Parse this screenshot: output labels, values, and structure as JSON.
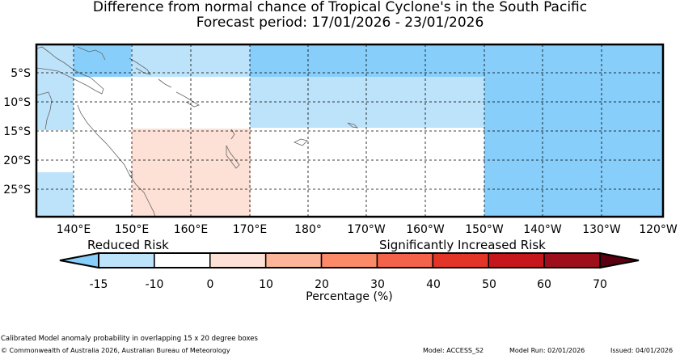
{
  "header": {
    "title": "Difference from normal chance of Tropical Cyclone's in the South Pacific",
    "subtitle": "Forecast period: 17/01/2026 - 23/01/2026"
  },
  "map": {
    "lat_labels": [
      "5°S",
      "10°S",
      "15°S",
      "20°S",
      "25°S"
    ],
    "lon_labels": [
      "140°E",
      "150°E",
      "160°E",
      "170°E",
      "180°",
      "170°W",
      "160°W",
      "150°W",
      "140°W",
      "130°W",
      "120°W"
    ]
  },
  "legend": {
    "reduced_label": "Reduced Risk",
    "increased_label": "Significantly Increased Risk",
    "ticks": [
      "-15",
      "-10",
      "0",
      "10",
      "20",
      "30",
      "40",
      "50",
      "60",
      "70"
    ],
    "axis_label": "Percentage (%)",
    "colors": [
      "#87cefa",
      "#bde3fa",
      "#ffffff",
      "#fde0d6",
      "#fcb598",
      "#fa8a68",
      "#f3624a",
      "#e33428",
      "#c5171c",
      "#9e0f1b",
      "#5a0010"
    ]
  },
  "footer": {
    "note": "Calibrated Model anomaly probability in overlapping 15 x 20 degree boxes",
    "copyright": "© Commonwealth of Australia 2026, Australian Bureau of Meteorology",
    "model": "Model: ACCESS_S2",
    "model_run": "Model Run: 02/01/2026",
    "issued": "Issued: 04/01/2026"
  }
}
